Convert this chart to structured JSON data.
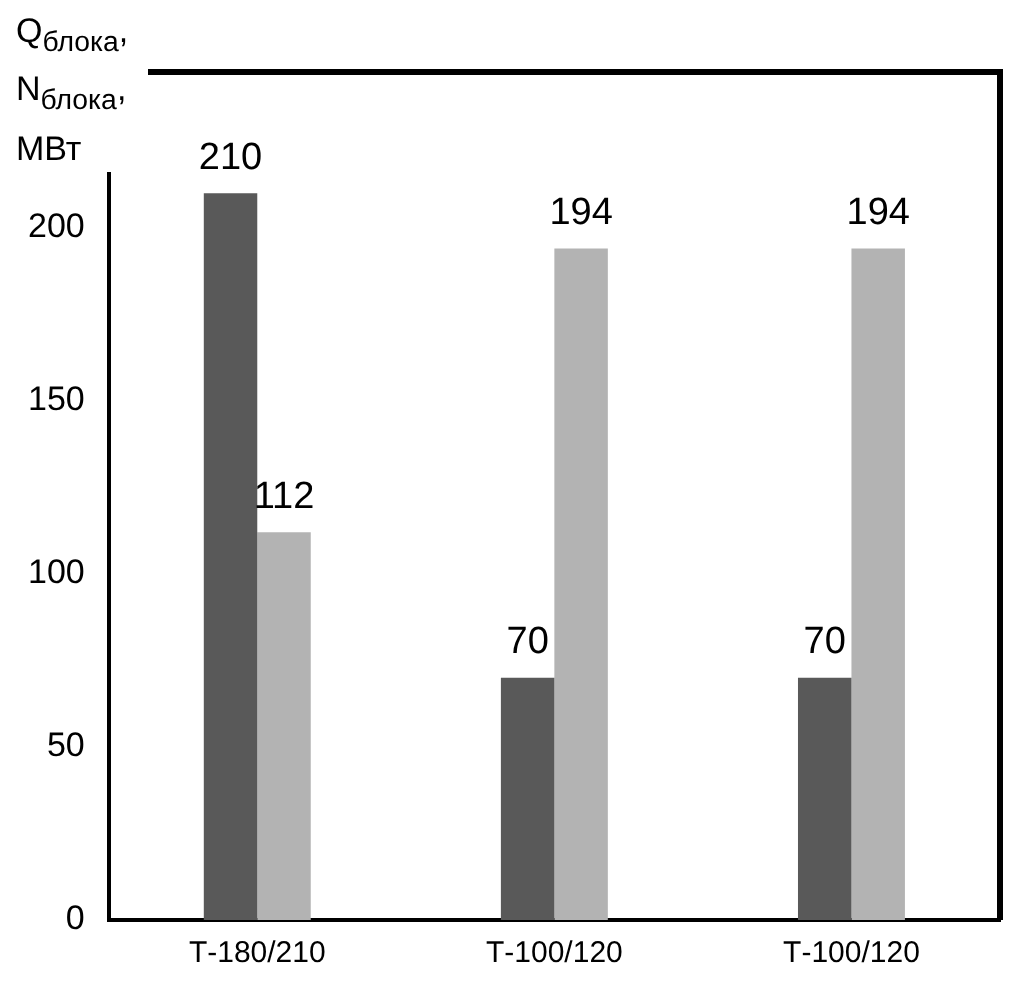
{
  "chart_data": {
    "type": "bar",
    "ylabel": "Q$_{блока}$, N$_{блока}$, МВт",
    "categories": [
      "Т-180/210",
      "Т-100/120",
      "Т-100/120"
    ],
    "series": [
      {
        "color": "#595959",
        "values": [
          210,
          70,
          70
        ]
      },
      {
        "color": "#b3b3b3",
        "values": [
          112,
          194,
          194
        ]
      }
    ],
    "ylim": [
      0,
      245
    ],
    "yticks": [
      0,
      50,
      100,
      150,
      200
    ],
    "grid": false,
    "legend": false,
    "data_labels": true
  }
}
